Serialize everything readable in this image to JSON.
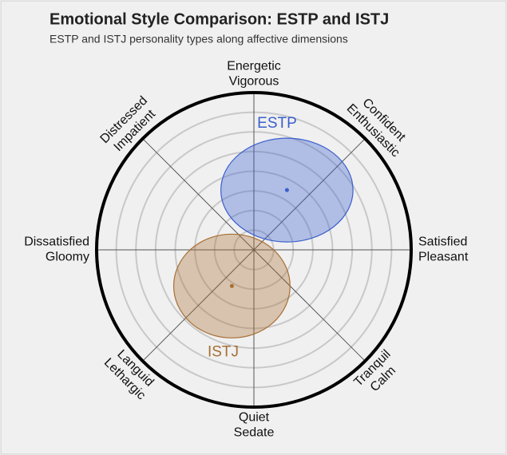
{
  "chart_data": {
    "type": "ellipse",
    "title": "Emotional Style Comparison: ESTP and ISTJ",
    "subtitle": "ESTP and ISTJ personality types along affective dimensions",
    "axis_labels": [
      [
        "Energetic",
        "Vigorous"
      ],
      [
        "Confident",
        "Enthusiastic"
      ],
      [
        "Satisfied",
        "Pleasant"
      ],
      [
        "Tranquil",
        "Calm"
      ],
      [
        "Quiet",
        "Sedate"
      ],
      [
        "Languid",
        "Lethargic"
      ],
      [
        "Dissatisfied",
        "Gloomy"
      ],
      [
        "Distressed",
        "Impatient"
      ]
    ],
    "xlim": [
      -1,
      1
    ],
    "ylim": [
      -1,
      1
    ],
    "rings": [
      0.125,
      0.25,
      0.375,
      0.5,
      0.625,
      0.75,
      0.875
    ],
    "series": [
      {
        "name": "ESTP",
        "color": "#3a5fcd",
        "x": 0.21,
        "y": 0.38,
        "rx": 0.42,
        "ry": 0.33
      },
      {
        "name": "ISTJ",
        "color": "#a86f34",
        "x": -0.14,
        "y": -0.23,
        "rx": 0.37,
        "ry": 0.33
      }
    ]
  }
}
